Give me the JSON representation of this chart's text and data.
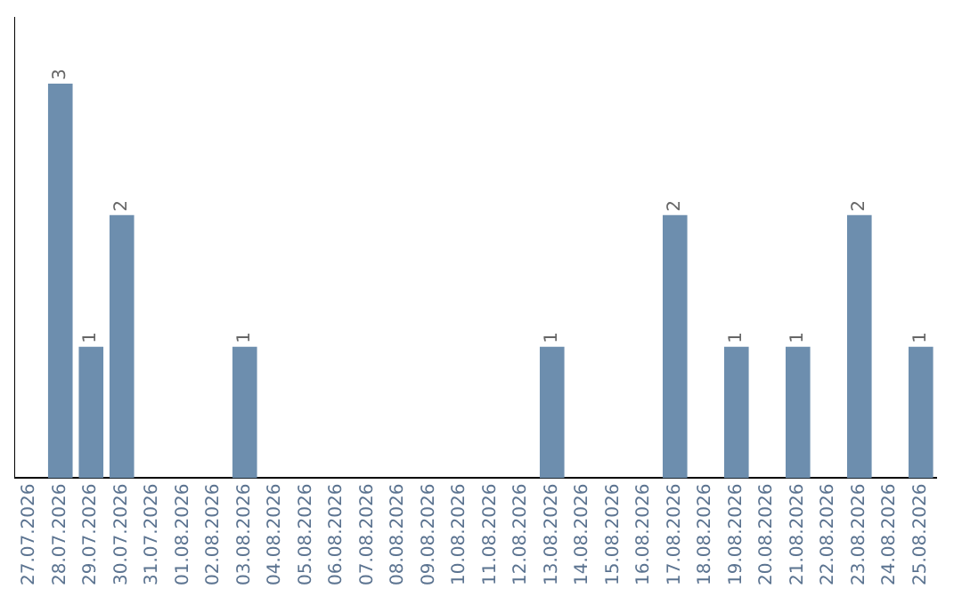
{
  "chart_data": {
    "type": "bar",
    "categories": [
      "27.07.2026",
      "28.07.2026",
      "29.07.2026",
      "30.07.2026",
      "31.07.2026",
      "01.08.2026",
      "02.08.2026",
      "03.08.2026",
      "04.08.2026",
      "05.08.2026",
      "06.08.2026",
      "07.08.2026",
      "08.08.2026",
      "09.08.2026",
      "10.08.2026",
      "11.08.2026",
      "12.08.2026",
      "13.08.2026",
      "14.08.2026",
      "15.08.2026",
      "16.08.2026",
      "17.08.2026",
      "18.08.2026",
      "19.08.2026",
      "20.08.2026",
      "21.08.2026",
      "22.08.2026",
      "23.08.2026",
      "24.08.2026",
      "25.08.2026"
    ],
    "values": [
      0,
      3,
      1,
      2,
      0,
      0,
      0,
      1,
      0,
      0,
      0,
      0,
      0,
      0,
      0,
      0,
      0,
      1,
      0,
      0,
      0,
      2,
      0,
      1,
      0,
      1,
      0,
      2,
      0,
      1
    ],
    "value_labels": [
      null,
      "3",
      "1",
      "2",
      null,
      null,
      null,
      "1",
      null,
      null,
      null,
      null,
      null,
      null,
      null,
      null,
      null,
      "1",
      null,
      null,
      null,
      "2",
      null,
      "1",
      null,
      "1",
      null,
      "2",
      null,
      "1"
    ],
    "color": "#6d8eae",
    "grid": false,
    "legend": false
  }
}
